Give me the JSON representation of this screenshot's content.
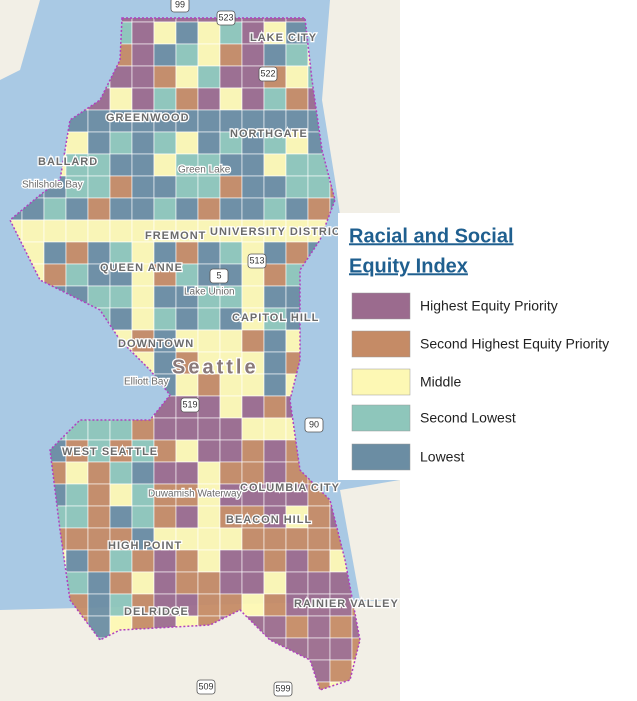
{
  "legend": {
    "title_lines": [
      "Racial and Social",
      "Equity Index"
    ],
    "items": [
      {
        "name": "Highest Equity Priority",
        "color": "#9b6b8e"
      },
      {
        "name": "Second Highest Equity Priority",
        "color": "#c58b66"
      },
      {
        "name": "Middle",
        "color": "#fdf8b4"
      },
      {
        "name": "Second Lowest",
        "color": "#8ec6bb"
      },
      {
        "name": "Lowest",
        "color": "#6b8da3"
      }
    ]
  },
  "map_labels": [
    "LAKE CITY",
    "GREENWOOD",
    "NORTHGATE",
    "BALLARD",
    "Shilshole Bay",
    "Green Lake",
    "FREMONT",
    "UNIVERSITY DISTRICT",
    "QUEEN ANNE",
    "Lake Union",
    "CAPITOL HILL",
    "DOWNTOWN",
    "Seattle",
    "Elliott Bay",
    "WEST SEATTLE",
    "COLUMBIA CITY",
    "BEACON HILL",
    "Duwamish Waterway",
    "HIGH POINT",
    "DELRIDGE",
    "RAINIER VALLEY"
  ],
  "road_shields": [
    "99",
    "523",
    "522",
    "5",
    "513",
    "519",
    "90",
    "509",
    "599"
  ]
}
